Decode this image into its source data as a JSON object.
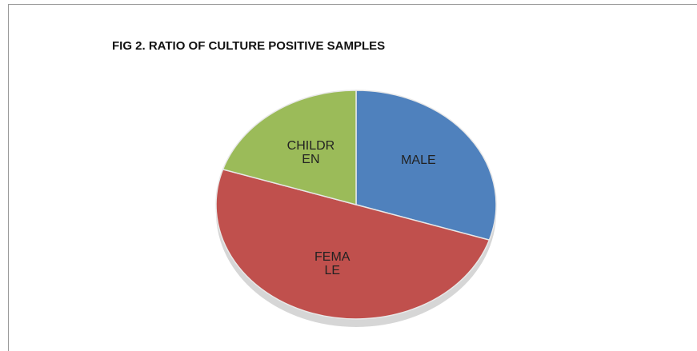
{
  "chart_data": {
    "type": "pie",
    "title": "FIG 2. RATIO OF CULTURE POSITIVE SAMPLES",
    "categories": [
      "MALE",
      "FEMALE",
      "CHILDREN"
    ],
    "values": [
      30,
      50,
      20
    ],
    "colors": [
      "#4f81bd",
      "#c0504d",
      "#9bbb59"
    ]
  }
}
